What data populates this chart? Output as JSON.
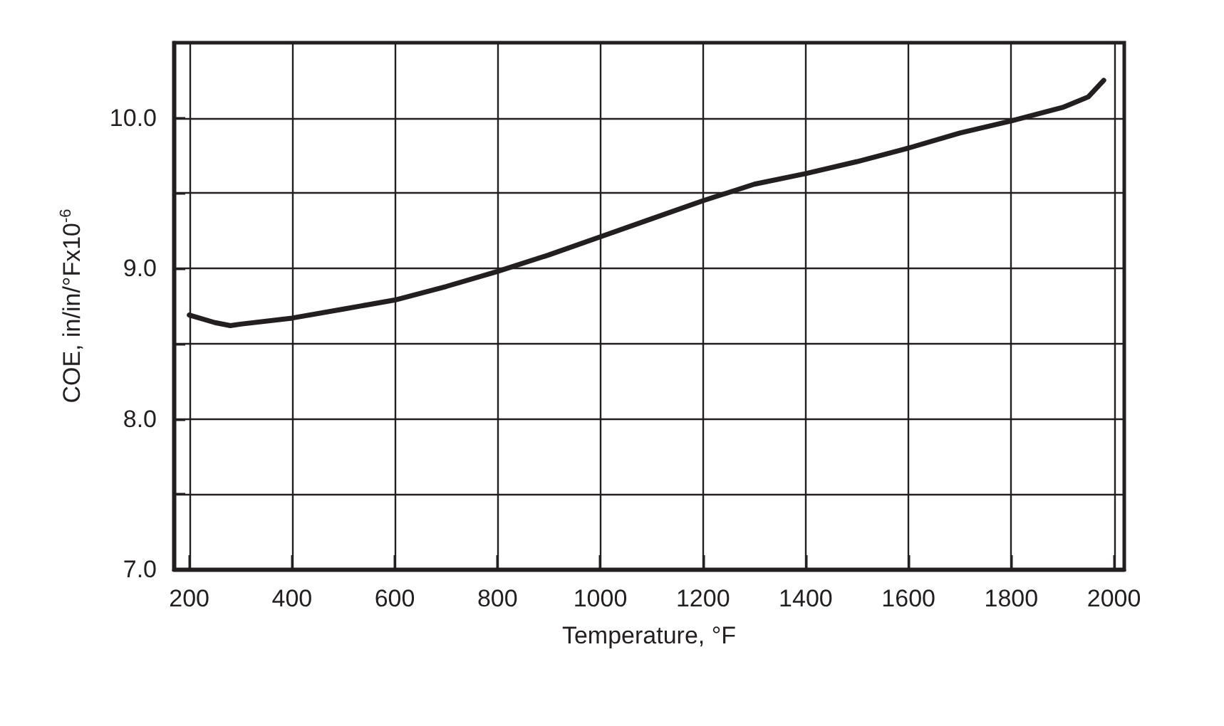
{
  "chart_data": {
    "type": "line",
    "xlabel": "Temperature, °F",
    "ylabel": "COE, in/in/°Fx10$^{-6}$",
    "x": [
      200,
      250,
      280,
      300,
      400,
      500,
      600,
      700,
      800,
      900,
      1000,
      1100,
      1200,
      1300,
      1400,
      1500,
      1600,
      1700,
      1800,
      1900,
      1950,
      1980
    ],
    "series": [
      {
        "color": "#231f20",
        "values": [
          8.69,
          8.64,
          8.62,
          8.63,
          8.67,
          8.73,
          8.79,
          8.88,
          8.98,
          9.09,
          9.21,
          9.33,
          9.45,
          9.56,
          9.63,
          9.71,
          9.8,
          9.9,
          9.98,
          10.07,
          10.14,
          10.25
        ]
      }
    ],
    "xlim": [
      170,
      2020
    ],
    "xticks": [
      200,
      400,
      600,
      800,
      1000,
      1200,
      1400,
      1600,
      1800,
      2000
    ],
    "ylim": [
      7,
      10.5
    ],
    "yticks": [
      {
        "value": 7,
        "label": "7.0"
      },
      {
        "value": 7.5,
        "label": null
      },
      {
        "value": 8,
        "label": "8.0"
      },
      {
        "value": 8.5,
        "label": null
      },
      {
        "value": 9,
        "label": "9.0"
      },
      {
        "value": 9.5,
        "label": null
      },
      {
        "value": 10,
        "label": "10.0"
      }
    ],
    "grid": true,
    "marker": "none",
    "line_style": "solid"
  }
}
